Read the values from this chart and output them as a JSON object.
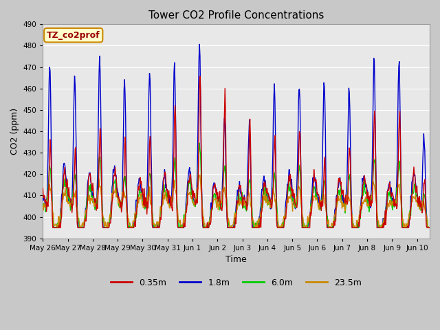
{
  "title": "Tower CO2 Profile Concentrations",
  "xlabel": "Time",
  "ylabel": "CO2 (ppm)",
  "ylim": [
    390,
    490
  ],
  "yticks": [
    390,
    400,
    410,
    420,
    430,
    440,
    450,
    460,
    470,
    480,
    490
  ],
  "x_tick_labels": [
    "May 26",
    "May 27",
    "May 28",
    "May 29",
    "May 30",
    "May 31",
    "Jun 1",
    "Jun 2",
    "Jun 3",
    "Jun 4",
    "Jun 5",
    "Jun 6",
    "Jun 7",
    "Jun 8",
    "Jun 9",
    "Jun 10"
  ],
  "x_tick_positions": [
    0,
    1,
    2,
    3,
    4,
    5,
    6,
    7,
    8,
    9,
    10,
    11,
    12,
    13,
    14,
    15
  ],
  "series_colors": [
    "#cc0000",
    "#0000cc",
    "#00cc00",
    "#cc8800"
  ],
  "series_labels": [
    "0.35m",
    "1.8m",
    "6.0m",
    "23.5m"
  ],
  "annotation_text": "TZ_co2prof",
  "annotation_box_facecolor": "#ffffcc",
  "annotation_text_color": "#990000",
  "annotation_border_color": "#cc8800",
  "plot_bg_color": "#e8e8e8",
  "fig_bg_color": "#c8c8c8",
  "grid_color": "#ffffff",
  "title_fontsize": 11,
  "axis_label_fontsize": 9,
  "tick_fontsize": 7.5,
  "legend_fontsize": 9,
  "linewidth": 1.0
}
